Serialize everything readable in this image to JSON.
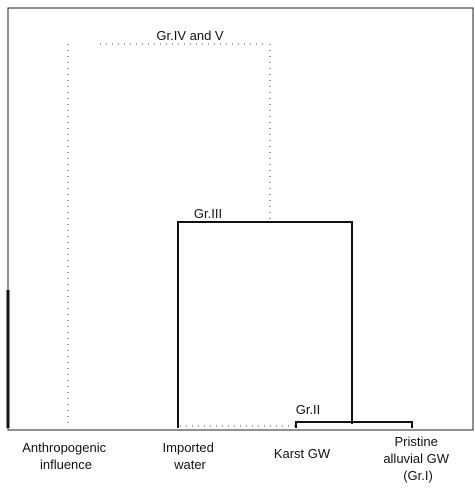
{
  "clusters": [
    {
      "label": "Gr.IV and V"
    },
    {
      "label": "Gr.III"
    },
    {
      "label": "Gr.II"
    }
  ],
  "leaves": [
    {
      "lines": [
        "Anthropogenic",
        "influence"
      ]
    },
    {
      "lines": [
        "Imported",
        "water"
      ]
    },
    {
      "lines": [
        "Karst GW"
      ]
    },
    {
      "lines": [
        "Pristine",
        "alluvial GW",
        "(Gr.I)"
      ]
    }
  ]
}
